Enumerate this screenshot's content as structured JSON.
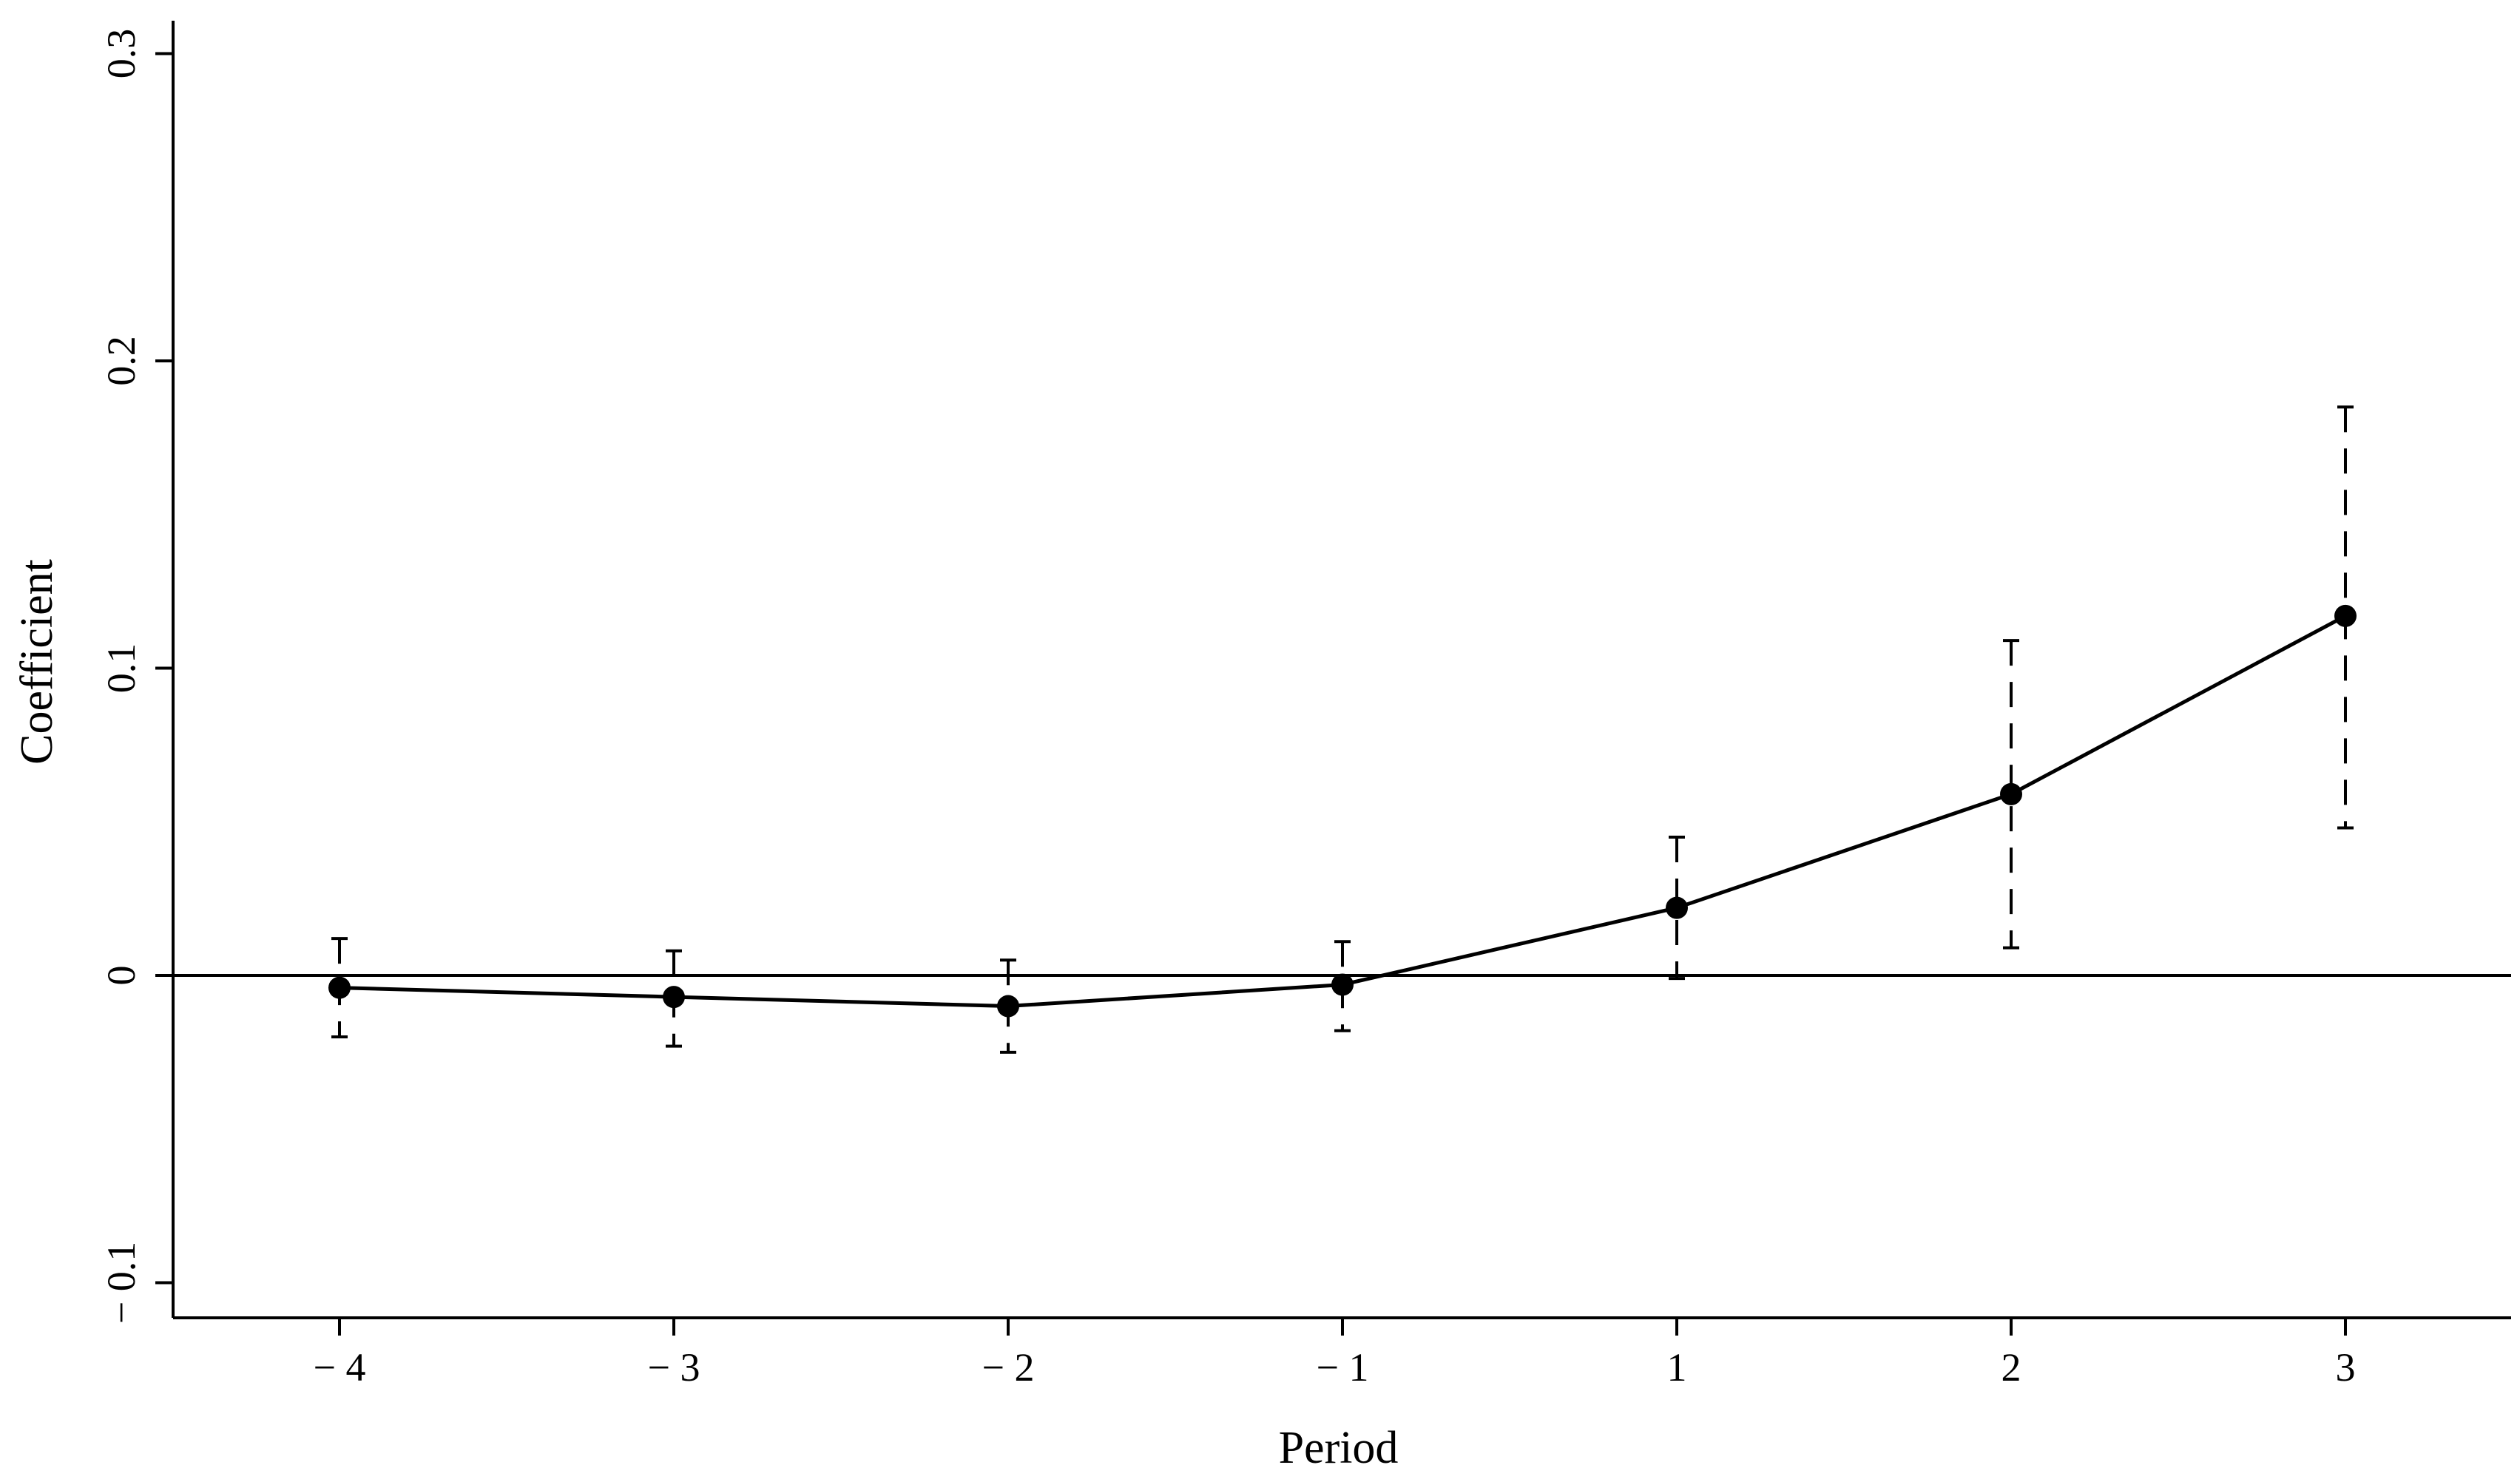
{
  "chart_data": {
    "type": "line",
    "title": "",
    "xlabel": "Period",
    "ylabel": "Coefficient",
    "x_ticks": [
      "− 4",
      "− 3",
      "− 2",
      "− 1",
      "1",
      "2",
      "3"
    ],
    "y_ticks": [
      {
        "value": -0.1,
        "label": "− 0.1"
      },
      {
        "value": 0,
        "label": "0"
      },
      {
        "value": 0.1,
        "label": "0.1"
      },
      {
        "value": 0.2,
        "label": "0.2"
      },
      {
        "value": 0.3,
        "label": "0.3"
      }
    ],
    "ylim": [
      -0.111,
      0.311
    ],
    "reference_line_y": 0,
    "grid": false,
    "series": [
      {
        "values": [
          -0.004,
          -0.007,
          -0.01,
          -0.003,
          0.022,
          0.059,
          0.117
        ],
        "ci_lower": [
          -0.02,
          -0.023,
          -0.025,
          -0.018,
          -0.001,
          0.009,
          0.048
        ],
        "ci_upper": [
          0.012,
          0.008,
          0.005,
          0.011,
          0.045,
          0.109,
          0.185
        ],
        "color": "#000000",
        "marker": "filled-circle",
        "error_bar_style": "dashed"
      }
    ]
  }
}
